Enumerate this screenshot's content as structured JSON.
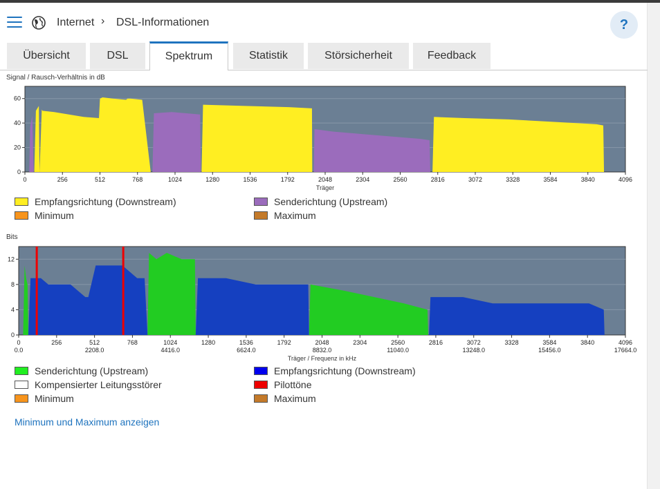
{
  "header": {
    "breadcrumb_1": "Internet",
    "breadcrumb_sep": "›",
    "breadcrumb_2": "DSL-Informationen",
    "help": "?"
  },
  "tabs": [
    {
      "label": "Übersicht",
      "active": false
    },
    {
      "label": "DSL",
      "active": false
    },
    {
      "label": "Spektrum",
      "active": true
    },
    {
      "label": "Statistik",
      "active": false
    },
    {
      "label": "Störsicherheit",
      "active": false
    },
    {
      "label": "Feedback",
      "active": false
    }
  ],
  "chart_data": [
    {
      "type": "area",
      "title": "Signal / Rausch-Verhältnis in dB",
      "xlabel": "Träger",
      "ylabel": "",
      "xlim": [
        0,
        4096
      ],
      "ylim": [
        0,
        70
      ],
      "x_ticks": [
        0,
        256,
        512,
        768,
        1024,
        1280,
        1536,
        1792,
        2048,
        2304,
        2560,
        2816,
        3072,
        3328,
        3584,
        3840,
        4096
      ],
      "y_ticks": [
        0,
        20,
        40,
        60
      ],
      "series": [
        {
          "name": "Empfangsrichtung (Downstream)",
          "color": "#ffee22",
          "x": [
            64,
            75,
            95,
            100,
            115,
            120,
            200,
            300,
            400,
            505,
            512,
            530,
            600,
            690,
            700,
            720,
            800,
            858
          ],
          "y": [
            0,
            50,
            54,
            0,
            51,
            50,
            49,
            47,
            45,
            44,
            60,
            61,
            60,
            59,
            60,
            60,
            59,
            0
          ]
        },
        {
          "name": "Senderichtung (Upstream)",
          "color": "#9b6cbc",
          "x": [
            30,
            36,
            50,
            60
          ],
          "y": [
            0,
            37,
            46,
            0
          ]
        },
        {
          "name": "Senderichtung (Upstream)",
          "color": "#9b6cbc",
          "x": [
            870,
            880,
            1000,
            1100,
            1195,
            1200
          ],
          "y": [
            0,
            48,
            49,
            48,
            47,
            0
          ]
        },
        {
          "name": "Empfangsrichtung (Downstream)",
          "color": "#ffee22",
          "x": [
            1205,
            1215,
            1500,
            1800,
            1958,
            1960
          ],
          "y": [
            0,
            55,
            54,
            53,
            52,
            0
          ]
        },
        {
          "name": "Senderichtung (Upstream)",
          "color": "#9b6cbc",
          "x": [
            1970,
            1975,
            2100,
            2300,
            2500,
            2700,
            2760,
            2765
          ],
          "y": [
            0,
            35,
            33,
            31,
            29,
            27,
            26,
            0
          ]
        },
        {
          "name": "Empfangsrichtung (Downstream)",
          "color": "#ffee22",
          "x": [
            2780,
            2790,
            3000,
            3300,
            3600,
            3900,
            3945,
            3950
          ],
          "y": [
            0,
            45,
            44,
            43,
            41,
            39,
            38,
            0
          ]
        }
      ],
      "legend": [
        {
          "label": "Empfangsrichtung (Downstream)",
          "color": "#ffee22"
        },
        {
          "label": "Senderichtung (Upstream)",
          "color": "#9b6cbc"
        },
        {
          "label": "Minimum",
          "color": "#f7941d"
        },
        {
          "label": "Maximum",
          "color": "#c47a2a"
        }
      ]
    },
    {
      "type": "area",
      "title": "Bits",
      "xlabel": "Träger / Frequenz in kHz",
      "ylabel": "",
      "xlim": [
        0,
        4096
      ],
      "ylim": [
        0,
        14
      ],
      "x_ticks": [
        0,
        256,
        512,
        768,
        1024,
        1280,
        1536,
        1792,
        2048,
        2304,
        2560,
        2816,
        3072,
        3328,
        3584,
        3840,
        4096
      ],
      "x_ticks_khz": [
        "0.0",
        "2208.0",
        "4416.0",
        "6624.0",
        "8832.0",
        "11040.0",
        "13248.0",
        "15456.0",
        "17664.0"
      ],
      "y_ticks": [
        0,
        4,
        8,
        12
      ],
      "series": [
        {
          "name": "Senderichtung (Upstream)",
          "color": "#22cc22",
          "x": [
            30,
            40,
            50,
            60,
            65
          ],
          "y": [
            0,
            11,
            9,
            8,
            0
          ]
        },
        {
          "name": "Empfangsrichtung (Downstream)",
          "color": "#1540c0",
          "x": [
            65,
            80,
            150,
            200,
            350,
            450,
            470,
            520,
            700,
            800,
            850,
            870
          ],
          "y": [
            0,
            9,
            9,
            8,
            8,
            6,
            6,
            11,
            11,
            9,
            9,
            0
          ]
        },
        {
          "name": "Senderichtung (Upstream)",
          "color": "#22cc22",
          "x": [
            870,
            880,
            930,
            1000,
            1100,
            1190,
            1195
          ],
          "y": [
            0,
            13,
            12,
            13,
            12,
            12,
            0
          ]
        },
        {
          "name": "Empfangsrichtung (Downstream)",
          "color": "#1540c0",
          "x": [
            1195,
            1210,
            1400,
            1600,
            1900,
            1955,
            1960
          ],
          "y": [
            0,
            9,
            9,
            8,
            8,
            8,
            0
          ]
        },
        {
          "name": "Senderichtung (Upstream)",
          "color": "#22cc22",
          "x": [
            1960,
            1970,
            2200,
            2400,
            2600,
            2760,
            2765
          ],
          "y": [
            0,
            8,
            7,
            6,
            5,
            4,
            0
          ]
        },
        {
          "name": "Empfangsrichtung (Downstream)",
          "color": "#1540c0",
          "x": [
            2770,
            2780,
            3000,
            3200,
            3600,
            3850,
            3950,
            3955
          ],
          "y": [
            0,
            6,
            6,
            5,
            5,
            5,
            4,
            0
          ]
        }
      ],
      "pilot_tones": [
        122,
        706
      ],
      "legend": [
        {
          "label": "Senderichtung (Upstream)",
          "color": "#22ee22"
        },
        {
          "label": "Empfangsrichtung (Downstream)",
          "color": "#0000ee"
        },
        {
          "label": "Kompensierter Leitungsstörer",
          "color": "#ffffff"
        },
        {
          "label": "Pilottöne",
          "color": "#ee0000"
        },
        {
          "label": "Minimum",
          "color": "#f7941d"
        },
        {
          "label": "Maximum",
          "color": "#c47a2a"
        }
      ]
    }
  ],
  "link_label": "Minimum und Maximum anzeigen"
}
